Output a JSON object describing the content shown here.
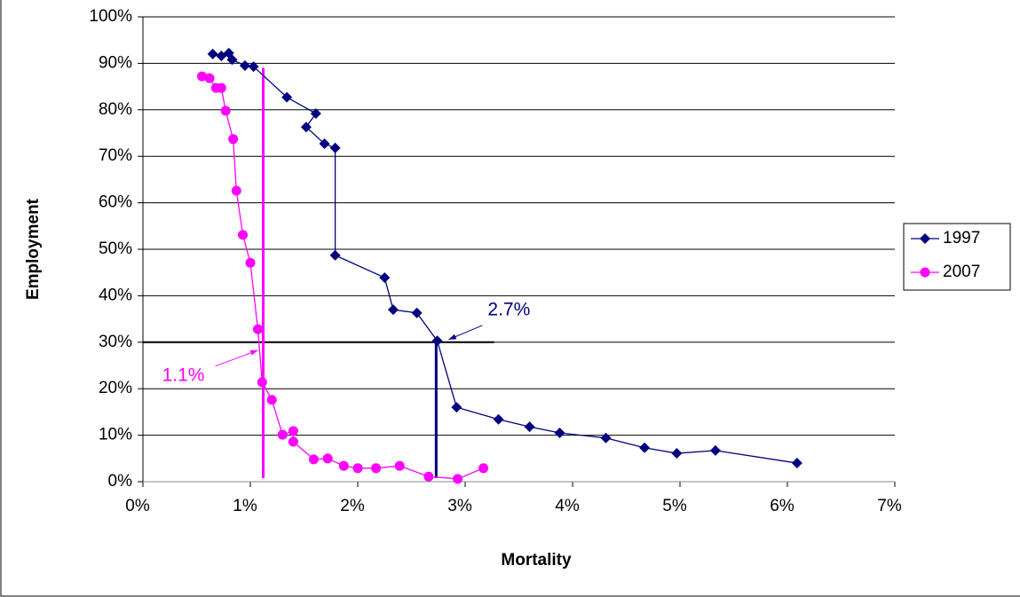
{
  "chart_data": {
    "type": "scatter",
    "x_label": "Mortality",
    "y_label": "Employment",
    "xlim": [
      0,
      7
    ],
    "ylim": [
      0,
      100
    ],
    "xticks": [
      {
        "value": 0,
        "label": "0%"
      },
      {
        "value": 1,
        "label": "1%"
      },
      {
        "value": 2,
        "label": "2%"
      },
      {
        "value": 3,
        "label": "3%"
      },
      {
        "value": 4,
        "label": "4%"
      },
      {
        "value": 5,
        "label": "5%"
      },
      {
        "value": 6,
        "label": "6%"
      },
      {
        "value": 7,
        "label": "7%"
      }
    ],
    "yticks": [
      {
        "value": 0,
        "label": "0%"
      },
      {
        "value": 10,
        "label": "10%"
      },
      {
        "value": 20,
        "label": "20%"
      },
      {
        "value": 30,
        "label": "30%"
      },
      {
        "value": 40,
        "label": "40%"
      },
      {
        "value": 50,
        "label": "50%"
      },
      {
        "value": 60,
        "label": "60%"
      },
      {
        "value": 70,
        "label": "70%"
      },
      {
        "value": 80,
        "label": "80%"
      },
      {
        "value": 90,
        "label": "90%"
      },
      {
        "value": 100,
        "label": "100%"
      }
    ],
    "grid": true,
    "legend": "right",
    "series": [
      {
        "name": "1997",
        "color": "#000080",
        "marker": "diamond",
        "x": [
          0.65,
          0.73,
          0.8,
          0.83,
          0.95,
          1.03,
          1.34,
          1.61,
          1.52,
          1.69,
          1.79,
          1.79,
          2.25,
          2.33,
          2.55,
          2.74,
          2.92,
          3.31,
          3.6,
          3.88,
          4.31,
          4.67,
          4.97,
          5.33,
          6.09
        ],
        "values": [
          92,
          91.6,
          92.2,
          90.8,
          89.5,
          89.3,
          82.7,
          79.2,
          76.3,
          72.7,
          71.8,
          48.7,
          43.9,
          37,
          36.3,
          30.3,
          16,
          13.4,
          11.8,
          10.5,
          9.4,
          7.3,
          6.1,
          6.7,
          4
        ]
      },
      {
        "name": "2007",
        "color": "#ff00ff",
        "marker": "circle",
        "x": [
          0.55,
          0.62,
          0.68,
          0.73,
          0.77,
          0.84,
          0.87,
          0.93,
          1.0,
          1.07,
          1.11,
          1.2,
          1.3,
          1.4,
          1.4,
          1.59,
          1.72,
          1.87,
          2.0,
          2.17,
          2.39,
          2.66,
          2.93,
          3.17
        ],
        "values": [
          87.2,
          86.8,
          84.7,
          84.7,
          79.8,
          73.7,
          62.6,
          53.1,
          47.1,
          32.8,
          21.4,
          17.6,
          10.1,
          10.9,
          8.6,
          4.8,
          5.0,
          3.4,
          2.9,
          2.9,
          3.4,
          1.1,
          0.6,
          2.9
        ]
      }
    ],
    "reference_line": {
      "y": 30,
      "x_end": 3.27,
      "color": "#000000"
    },
    "annotations": [
      {
        "text": "2.7%",
        "x": 2.73,
        "y": 30,
        "line_top": 30,
        "color": "#000080"
      },
      {
        "text": "1.1%",
        "x": 1.12,
        "y": 30,
        "line_top": 89,
        "color": "#ff00ff"
      }
    ]
  }
}
